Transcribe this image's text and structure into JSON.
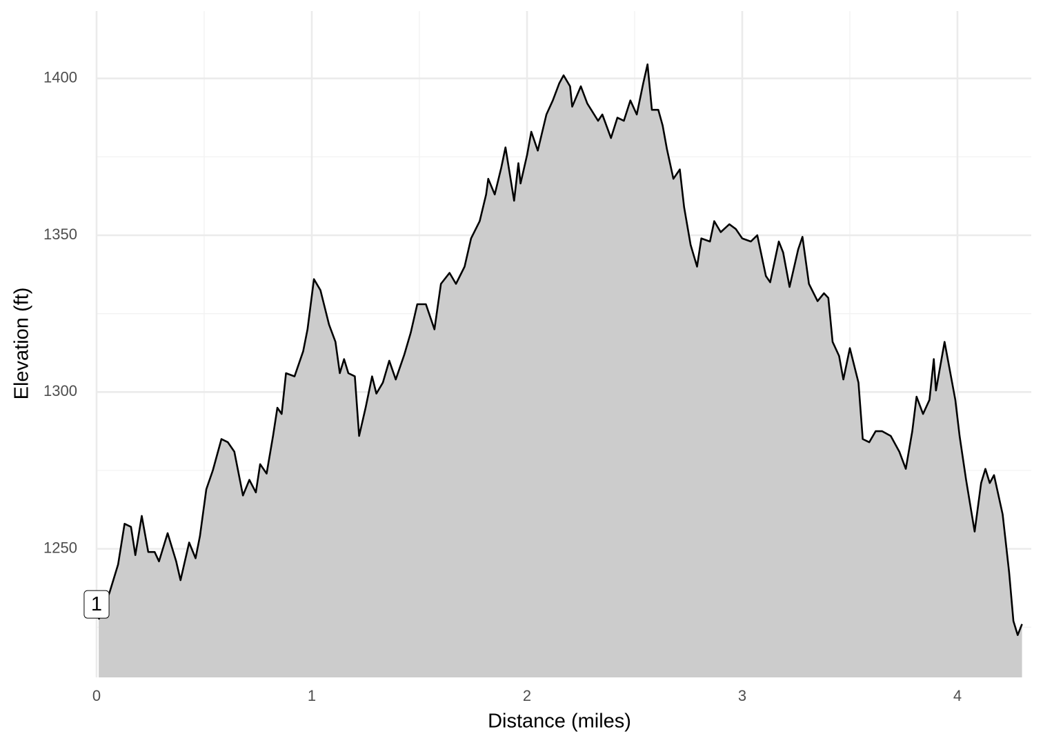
{
  "chart_data": {
    "type": "area",
    "x_label": "Distance (miles)",
    "y_label": "Elevation (ft)",
    "x": [
      0.01,
      0.06,
      0.1,
      0.13,
      0.16,
      0.18,
      0.21,
      0.24,
      0.27,
      0.29,
      0.33,
      0.37,
      0.39,
      0.43,
      0.46,
      0.48,
      0.51,
      0.54,
      0.58,
      0.61,
      0.64,
      0.68,
      0.71,
      0.74,
      0.76,
      0.79,
      0.82,
      0.84,
      0.86,
      0.88,
      0.92,
      0.96,
      0.98,
      1.01,
      1.04,
      1.08,
      1.11,
      1.13,
      1.15,
      1.17,
      1.2,
      1.22,
      1.25,
      1.28,
      1.3,
      1.33,
      1.36,
      1.39,
      1.43,
      1.46,
      1.49,
      1.53,
      1.57,
      1.6,
      1.64,
      1.67,
      1.71,
      1.74,
      1.78,
      1.81,
      1.82,
      1.85,
      1.88,
      1.9,
      1.94,
      1.96,
      1.97,
      2.0,
      2.02,
      2.05,
      2.09,
      2.12,
      2.15,
      2.17,
      2.2,
      2.21,
      2.25,
      2.28,
      2.33,
      2.35,
      2.39,
      2.42,
      2.45,
      2.48,
      2.51,
      2.54,
      2.56,
      2.58,
      2.61,
      2.63,
      2.65,
      2.68,
      2.71,
      2.73,
      2.76,
      2.79,
      2.81,
      2.85,
      2.87,
      2.9,
      2.94,
      2.97,
      3.0,
      3.04,
      3.07,
      3.11,
      3.13,
      3.17,
      3.19,
      3.22,
      3.26,
      3.28,
      3.31,
      3.35,
      3.38,
      3.4,
      3.42,
      3.45,
      3.47,
      3.5,
      3.54,
      3.56,
      3.59,
      3.62,
      3.65,
      3.69,
      3.73,
      3.76,
      3.79,
      3.81,
      3.84,
      3.87,
      3.89,
      3.9,
      3.94,
      3.99,
      4.01,
      4.04,
      4.08,
      4.11,
      4.13,
      4.15,
      4.17,
      4.21,
      4.24,
      4.26,
      4.28,
      4.3
    ],
    "values": [
      1227.5,
      1236,
      1245,
      1258,
      1257,
      1248,
      1260.5,
      1249,
      1249,
      1246,
      1255,
      1246,
      1240,
      1252,
      1247,
      1254,
      1269,
      1275,
      1285,
      1284,
      1281,
      1267,
      1272,
      1268,
      1277,
      1274,
      1286,
      1295,
      1293,
      1306,
      1305,
      1313,
      1320,
      1336,
      1332.5,
      1321.5,
      1316,
      1306,
      1310.5,
      1306,
      1305,
      1286,
      1295,
      1305,
      1299.5,
      1303,
      1310,
      1304,
      1312,
      1319,
      1328,
      1328,
      1320,
      1334.5,
      1338,
      1334.5,
      1340,
      1349,
      1354.5,
      1363,
      1368,
      1363,
      1371.5,
      1378,
      1361,
      1373,
      1366.5,
      1375.5,
      1383,
      1377,
      1388.5,
      1393,
      1398.5,
      1401,
      1397.5,
      1391,
      1397.5,
      1392,
      1386.5,
      1388.5,
      1381,
      1387.5,
      1386.5,
      1393,
      1388.5,
      1398.5,
      1404.5,
      1390,
      1390,
      1385,
      1377.5,
      1368,
      1371,
      1359,
      1347,
      1340,
      1349,
      1348,
      1354.5,
      1351,
      1353.5,
      1352,
      1349,
      1348,
      1350,
      1337,
      1335,
      1348,
      1344.5,
      1333.5,
      1345.5,
      1349.5,
      1334.5,
      1329,
      1331.5,
      1330,
      1316,
      1311.5,
      1304,
      1314,
      1303,
      1285,
      1284,
      1287.5,
      1287.5,
      1286,
      1281,
      1275.5,
      1287.5,
      1298.5,
      1293,
      1297.5,
      1310.5,
      1300.5,
      1316,
      1297.5,
      1286,
      1272,
      1255.5,
      1271,
      1275.5,
      1271,
      1273.5,
      1261,
      1242.5,
      1227,
      1222.5,
      1226
    ],
    "fill": "#cccccc",
    "color": "#000000",
    "xlim": [
      0,
      4.343
    ],
    "xticks": [
      0,
      1,
      2,
      3,
      4
    ],
    "ylim": [
      1209,
      1421.5
    ],
    "yticks": [
      1250,
      1300,
      1350,
      1400
    ],
    "grid": true,
    "minor_grid": true,
    "annotations": [
      {
        "text": "1",
        "x": 0,
        "y": 1232
      }
    ]
  }
}
